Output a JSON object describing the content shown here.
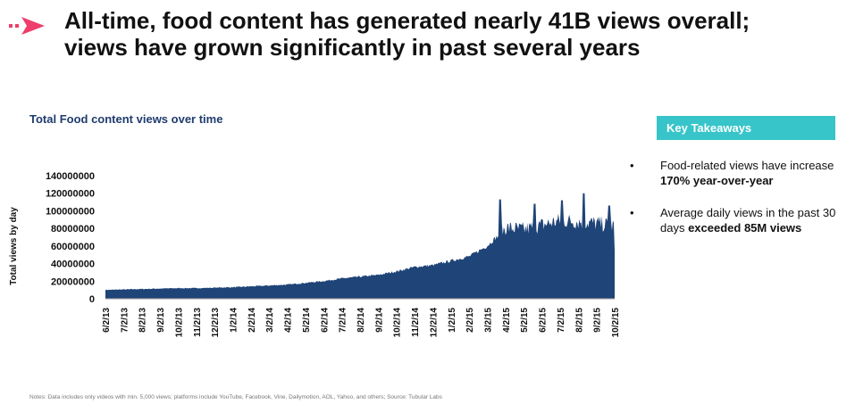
{
  "headline": {
    "line1": "All-time, food content has generated nearly 41B views overall;",
    "line2": "views have grown significantly in past several years"
  },
  "colors": {
    "brand": "#ef3e6b",
    "series": "#1f4477",
    "accent": "#37c5c9",
    "title": "#1f3c6e"
  },
  "chart_data": {
    "type": "area",
    "title": "Total Food content views over time",
    "ylabel": "Total views by day",
    "xlabel": "",
    "ylim": [
      0,
      140000000
    ],
    "yticks": [
      "0",
      "20000000",
      "40000000",
      "60000000",
      "80000000",
      "100000000",
      "120000000",
      "140000000"
    ],
    "categories": [
      "6/2/13",
      "7/2/13",
      "8/2/13",
      "9/2/13",
      "10/2/13",
      "11/2/13",
      "12/2/13",
      "1/2/14",
      "2/2/14",
      "3/2/14",
      "4/2/14",
      "5/2/14",
      "6/2/14",
      "7/2/14",
      "8/2/14",
      "9/2/14",
      "10/2/14",
      "11/2/14",
      "12/2/14",
      "1/2/15",
      "2/2/15",
      "3/2/15",
      "4/2/15",
      "5/2/15",
      "6/2/15",
      "7/2/15",
      "8/2/15",
      "9/2/15",
      "10/2/15"
    ],
    "series": [
      {
        "name": "Total views by day",
        "values": [
          10000000,
          10500000,
          11000000,
          11500000,
          12000000,
          12000000,
          12500000,
          13000000,
          14000000,
          15000000,
          16000000,
          18000000,
          20000000,
          23000000,
          25000000,
          27000000,
          31000000,
          36000000,
          38000000,
          43000000,
          48000000,
          60000000,
          80000000,
          78000000,
          83000000,
          88000000,
          87000000,
          85000000,
          82000000
        ],
        "peaks": [
          {
            "index": 21.7,
            "value": 113000000
          },
          {
            "index": 23.6,
            "value": 108000000
          },
          {
            "index": 25.1,
            "value": 112000000
          },
          {
            "index": 26.3,
            "value": 120000000
          },
          {
            "index": 27.7,
            "value": 106000000
          }
        ]
      }
    ]
  },
  "takeaways": {
    "header": "Key Takeaways",
    "bullet": "•",
    "items": [
      {
        "pre": "Food-related views have increase ",
        "bold": "170% year-over-year",
        "post": ""
      },
      {
        "pre": "Average daily views in the past 30 days ",
        "bold": "exceeded 85M views",
        "post": ""
      }
    ]
  },
  "footnote": "Notes: Data includes only videos with min. 5,000 views; platforms include YouTube, Facebook, Vine, Dailymotion, AOL, Yahoo, and others; Source: Tubular Labs"
}
